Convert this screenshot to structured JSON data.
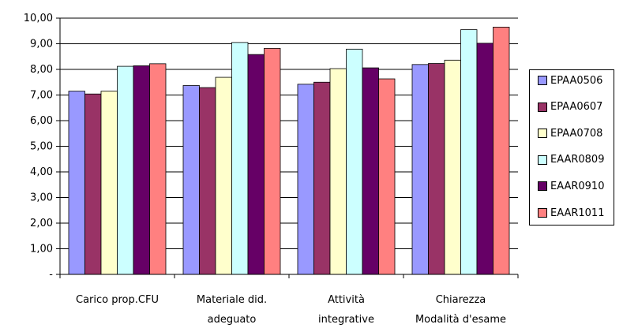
{
  "chart_data": {
    "type": "bar",
    "categories": [
      [
        "Carico prop.CFU"
      ],
      [
        "Materiale did.",
        "adeguato"
      ],
      [
        "Attività",
        "integrative"
      ],
      [
        "Chiarezza",
        "Modalità d'esame"
      ]
    ],
    "series": [
      {
        "name": "EPAA0506",
        "color": "#9999FF",
        "values": [
          7.15,
          7.37,
          7.42,
          8.19
        ]
      },
      {
        "name": "EPAA0607",
        "color": "#993366",
        "values": [
          7.04,
          7.29,
          7.5,
          8.23
        ]
      },
      {
        "name": "EPAA0708",
        "color": "#FFFFCC",
        "values": [
          7.15,
          7.69,
          8.03,
          8.36
        ]
      },
      {
        "name": "EAAR0809",
        "color": "#CCFFFF",
        "values": [
          8.12,
          9.05,
          8.79,
          9.55
        ]
      },
      {
        "name": "EAAR0910",
        "color": "#660066",
        "values": [
          8.14,
          8.58,
          8.06,
          9.02
        ]
      },
      {
        "name": "EAAR1011",
        "color": "#FF8080",
        "values": [
          8.22,
          8.82,
          7.63,
          9.65
        ]
      }
    ],
    "ylim": [
      0,
      10
    ],
    "yticks": [
      0,
      1,
      2,
      3,
      4,
      5,
      6,
      7,
      8,
      9,
      10
    ],
    "ytick_labels": [
      "-",
      "1,00",
      "2,00",
      "3,00",
      "4,00",
      "5,00",
      "6,00",
      "7,00",
      "8,00",
      "9,00",
      "10,00"
    ],
    "grid": true,
    "legend_position": "right"
  }
}
